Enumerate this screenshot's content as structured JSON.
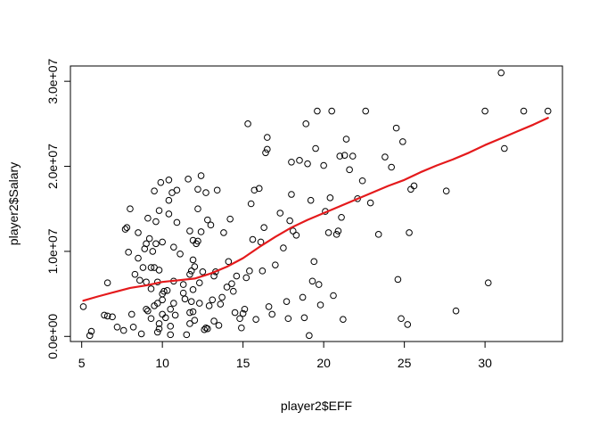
{
  "chart_data": {
    "type": "scatter",
    "title": "",
    "xlabel": "player2$EFF",
    "ylabel": "player2$Salary",
    "xlim": [
      4.3,
      34.8
    ],
    "ylim": [
      -600000,
      31800000
    ],
    "x_ticks": [
      5,
      10,
      15,
      20,
      25,
      30
    ],
    "x_tick_labels": [
      "5",
      "10",
      "15",
      "20",
      "25",
      "30"
    ],
    "y_ticks": [
      0,
      10000000,
      20000000,
      30000000
    ],
    "y_tick_labels": [
      "0.0e+00",
      "1.0e+07",
      "2.0e+07",
      "3.0e+07"
    ],
    "grid": false,
    "legend": "none",
    "point_color": "#000000",
    "smooth_color": "#e41a1c",
    "points": [
      [
        5.1,
        3500000
      ],
      [
        5.5,
        100000
      ],
      [
        5.6,
        600000
      ],
      [
        6.4,
        2500000
      ],
      [
        6.6,
        6300000
      ],
      [
        6.6,
        2400000
      ],
      [
        6.9,
        2300000
      ],
      [
        7.2,
        1100000
      ],
      [
        7.6,
        700000
      ],
      [
        7.7,
        12600000
      ],
      [
        7.8,
        12800000
      ],
      [
        7.9,
        9900000
      ],
      [
        8.0,
        15000000
      ],
      [
        8.1,
        2600000
      ],
      [
        8.2,
        1100000
      ],
      [
        8.3,
        7300000
      ],
      [
        8.5,
        12200000
      ],
      [
        8.5,
        9200000
      ],
      [
        8.6,
        6600000
      ],
      [
        8.7,
        300000
      ],
      [
        8.8,
        8100000
      ],
      [
        8.9,
        10300000
      ],
      [
        9.0,
        10900000
      ],
      [
        9.0,
        6400000
      ],
      [
        9.0,
        3200000
      ],
      [
        9.1,
        13900000
      ],
      [
        9.1,
        3000000
      ],
      [
        9.2,
        11500000
      ],
      [
        9.3,
        5600000
      ],
      [
        9.3,
        8100000
      ],
      [
        9.3,
        2100000
      ],
      [
        9.4,
        10000000
      ],
      [
        9.5,
        17100000
      ],
      [
        9.5,
        8100000
      ],
      [
        9.5,
        3600000
      ],
      [
        9.6,
        10900000
      ],
      [
        9.6,
        13500000
      ],
      [
        9.7,
        6400000
      ],
      [
        9.7,
        3900000
      ],
      [
        9.7,
        500000
      ],
      [
        9.8,
        14800000
      ],
      [
        9.8,
        7800000
      ],
      [
        9.8,
        1500000
      ],
      [
        9.8,
        900000
      ],
      [
        9.9,
        18100000
      ],
      [
        10.0,
        11100000
      ],
      [
        10.0,
        5000000
      ],
      [
        10.0,
        4300000
      ],
      [
        10.0,
        2600000
      ],
      [
        10.1,
        5300000
      ],
      [
        10.2,
        2200000
      ],
      [
        10.3,
        5400000
      ],
      [
        10.4,
        18400000
      ],
      [
        10.4,
        16000000
      ],
      [
        10.4,
        14400000
      ],
      [
        10.5,
        3200000
      ],
      [
        10.5,
        1200000
      ],
      [
        10.5,
        200000
      ],
      [
        10.6,
        16900000
      ],
      [
        10.7,
        10500000
      ],
      [
        10.7,
        6500000
      ],
      [
        10.7,
        3900000
      ],
      [
        10.8,
        2500000
      ],
      [
        10.9,
        17200000
      ],
      [
        10.9,
        13400000
      ],
      [
        11.1,
        9700000
      ],
      [
        11.3,
        6100000
      ],
      [
        11.3,
        5100000
      ],
      [
        11.4,
        4400000
      ],
      [
        11.5,
        200000
      ],
      [
        11.6,
        18500000
      ],
      [
        11.7,
        12400000
      ],
      [
        11.7,
        7300000
      ],
      [
        11.7,
        2800000
      ],
      [
        11.7,
        1500000
      ],
      [
        11.8,
        7700000
      ],
      [
        11.8,
        4100000
      ],
      [
        11.9,
        11300000
      ],
      [
        11.9,
        9000000
      ],
      [
        11.9,
        5500000
      ],
      [
        11.9,
        2900000
      ],
      [
        12.0,
        8200000
      ],
      [
        12.0,
        1900000
      ],
      [
        12.1,
        10900000
      ],
      [
        12.2,
        17300000
      ],
      [
        12.2,
        15000000
      ],
      [
        12.2,
        11200000
      ],
      [
        12.3,
        6300000
      ],
      [
        12.3,
        3900000
      ],
      [
        12.4,
        12300000
      ],
      [
        12.4,
        18900000
      ],
      [
        12.5,
        7600000
      ],
      [
        12.6,
        800000
      ],
      [
        12.7,
        16900000
      ],
      [
        12.7,
        1000000
      ],
      [
        12.8,
        13700000
      ],
      [
        12.8,
        900000
      ],
      [
        12.9,
        3600000
      ],
      [
        13.0,
        13100000
      ],
      [
        13.1,
        4300000
      ],
      [
        13.2,
        7100000
      ],
      [
        13.2,
        1800000
      ],
      [
        13.3,
        7600000
      ],
      [
        13.4,
        17200000
      ],
      [
        13.5,
        1300000
      ],
      [
        13.6,
        3800000
      ],
      [
        13.7,
        4600000
      ],
      [
        13.8,
        12200000
      ],
      [
        14.0,
        5800000
      ],
      [
        14.1,
        8800000
      ],
      [
        14.2,
        13800000
      ],
      [
        14.3,
        6200000
      ],
      [
        14.4,
        5300000
      ],
      [
        14.5,
        2800000
      ],
      [
        14.6,
        7100000
      ],
      [
        14.8,
        2100000
      ],
      [
        14.9,
        1000000
      ],
      [
        15.0,
        2700000
      ],
      [
        15.1,
        3200000
      ],
      [
        15.2,
        6900000
      ],
      [
        15.3,
        25000000
      ],
      [
        15.4,
        7700000
      ],
      [
        15.5,
        15600000
      ],
      [
        15.6,
        11400000
      ],
      [
        15.7,
        17200000
      ],
      [
        15.8,
        2000000
      ],
      [
        16.0,
        17400000
      ],
      [
        16.1,
        11100000
      ],
      [
        16.2,
        7700000
      ],
      [
        16.3,
        12800000
      ],
      [
        16.4,
        21600000
      ],
      [
        16.5,
        23400000
      ],
      [
        16.5,
        22000000
      ],
      [
        16.6,
        3500000
      ],
      [
        16.8,
        2600000
      ],
      [
        17.0,
        8400000
      ],
      [
        17.3,
        14500000
      ],
      [
        17.5,
        10400000
      ],
      [
        17.7,
        4100000
      ],
      [
        17.8,
        2100000
      ],
      [
        17.9,
        13600000
      ],
      [
        18.0,
        20500000
      ],
      [
        18.0,
        16700000
      ],
      [
        18.1,
        12400000
      ],
      [
        18.3,
        11900000
      ],
      [
        18.5,
        20700000
      ],
      [
        18.7,
        4600000
      ],
      [
        18.8,
        2200000
      ],
      [
        18.9,
        25000000
      ],
      [
        19.0,
        20300000
      ],
      [
        19.1,
        100000
      ],
      [
        19.2,
        16000000
      ],
      [
        19.3,
        6500000
      ],
      [
        19.4,
        8800000
      ],
      [
        19.5,
        22100000
      ],
      [
        19.6,
        26500000
      ],
      [
        19.7,
        6100000
      ],
      [
        19.8,
        3700000
      ],
      [
        20.0,
        20100000
      ],
      [
        20.1,
        14700000
      ],
      [
        20.3,
        12200000
      ],
      [
        20.4,
        16300000
      ],
      [
        20.5,
        26500000
      ],
      [
        20.6,
        4800000
      ],
      [
        20.8,
        12000000
      ],
      [
        20.9,
        12400000
      ],
      [
        21.0,
        21200000
      ],
      [
        21.1,
        14000000
      ],
      [
        21.2,
        2000000
      ],
      [
        21.3,
        21300000
      ],
      [
        21.4,
        23200000
      ],
      [
        21.6,
        19600000
      ],
      [
        21.8,
        21200000
      ],
      [
        22.1,
        16200000
      ],
      [
        22.4,
        18300000
      ],
      [
        22.6,
        26500000
      ],
      [
        22.9,
        15700000
      ],
      [
        23.4,
        12000000
      ],
      [
        23.8,
        21100000
      ],
      [
        24.2,
        19900000
      ],
      [
        24.5,
        24500000
      ],
      [
        24.6,
        6700000
      ],
      [
        24.8,
        2100000
      ],
      [
        24.9,
        22900000
      ],
      [
        25.2,
        1400000
      ],
      [
        25.3,
        12200000
      ],
      [
        25.4,
        17300000
      ],
      [
        25.6,
        17700000
      ],
      [
        27.6,
        17100000
      ],
      [
        28.2,
        3000000
      ],
      [
        30.0,
        26500000
      ],
      [
        30.2,
        6300000
      ],
      [
        31.0,
        31000000
      ],
      [
        31.2,
        22100000
      ],
      [
        32.4,
        26500000
      ],
      [
        33.9,
        26500000
      ]
    ],
    "smooth_line": [
      [
        5.1,
        4200000
      ],
      [
        6.0,
        4700000
      ],
      [
        7.0,
        5200000
      ],
      [
        8.0,
        5700000
      ],
      [
        9.0,
        6000000
      ],
      [
        10.0,
        6400000
      ],
      [
        11.0,
        6600000
      ],
      [
        12.0,
        6800000
      ],
      [
        13.0,
        7400000
      ],
      [
        14.0,
        8200000
      ],
      [
        15.0,
        9200000
      ],
      [
        16.0,
        10500000
      ],
      [
        17.0,
        11700000
      ],
      [
        18.0,
        12800000
      ],
      [
        19.0,
        13700000
      ],
      [
        20.0,
        14500000
      ],
      [
        21.0,
        15300000
      ],
      [
        22.0,
        16100000
      ],
      [
        23.0,
        16900000
      ],
      [
        24.0,
        17700000
      ],
      [
        25.0,
        18400000
      ],
      [
        26.0,
        19300000
      ],
      [
        27.0,
        20100000
      ],
      [
        28.0,
        20800000
      ],
      [
        29.0,
        21600000
      ],
      [
        30.0,
        22500000
      ],
      [
        31.0,
        23300000
      ],
      [
        32.0,
        24100000
      ],
      [
        33.0,
        24900000
      ],
      [
        33.9,
        25700000
      ]
    ]
  }
}
